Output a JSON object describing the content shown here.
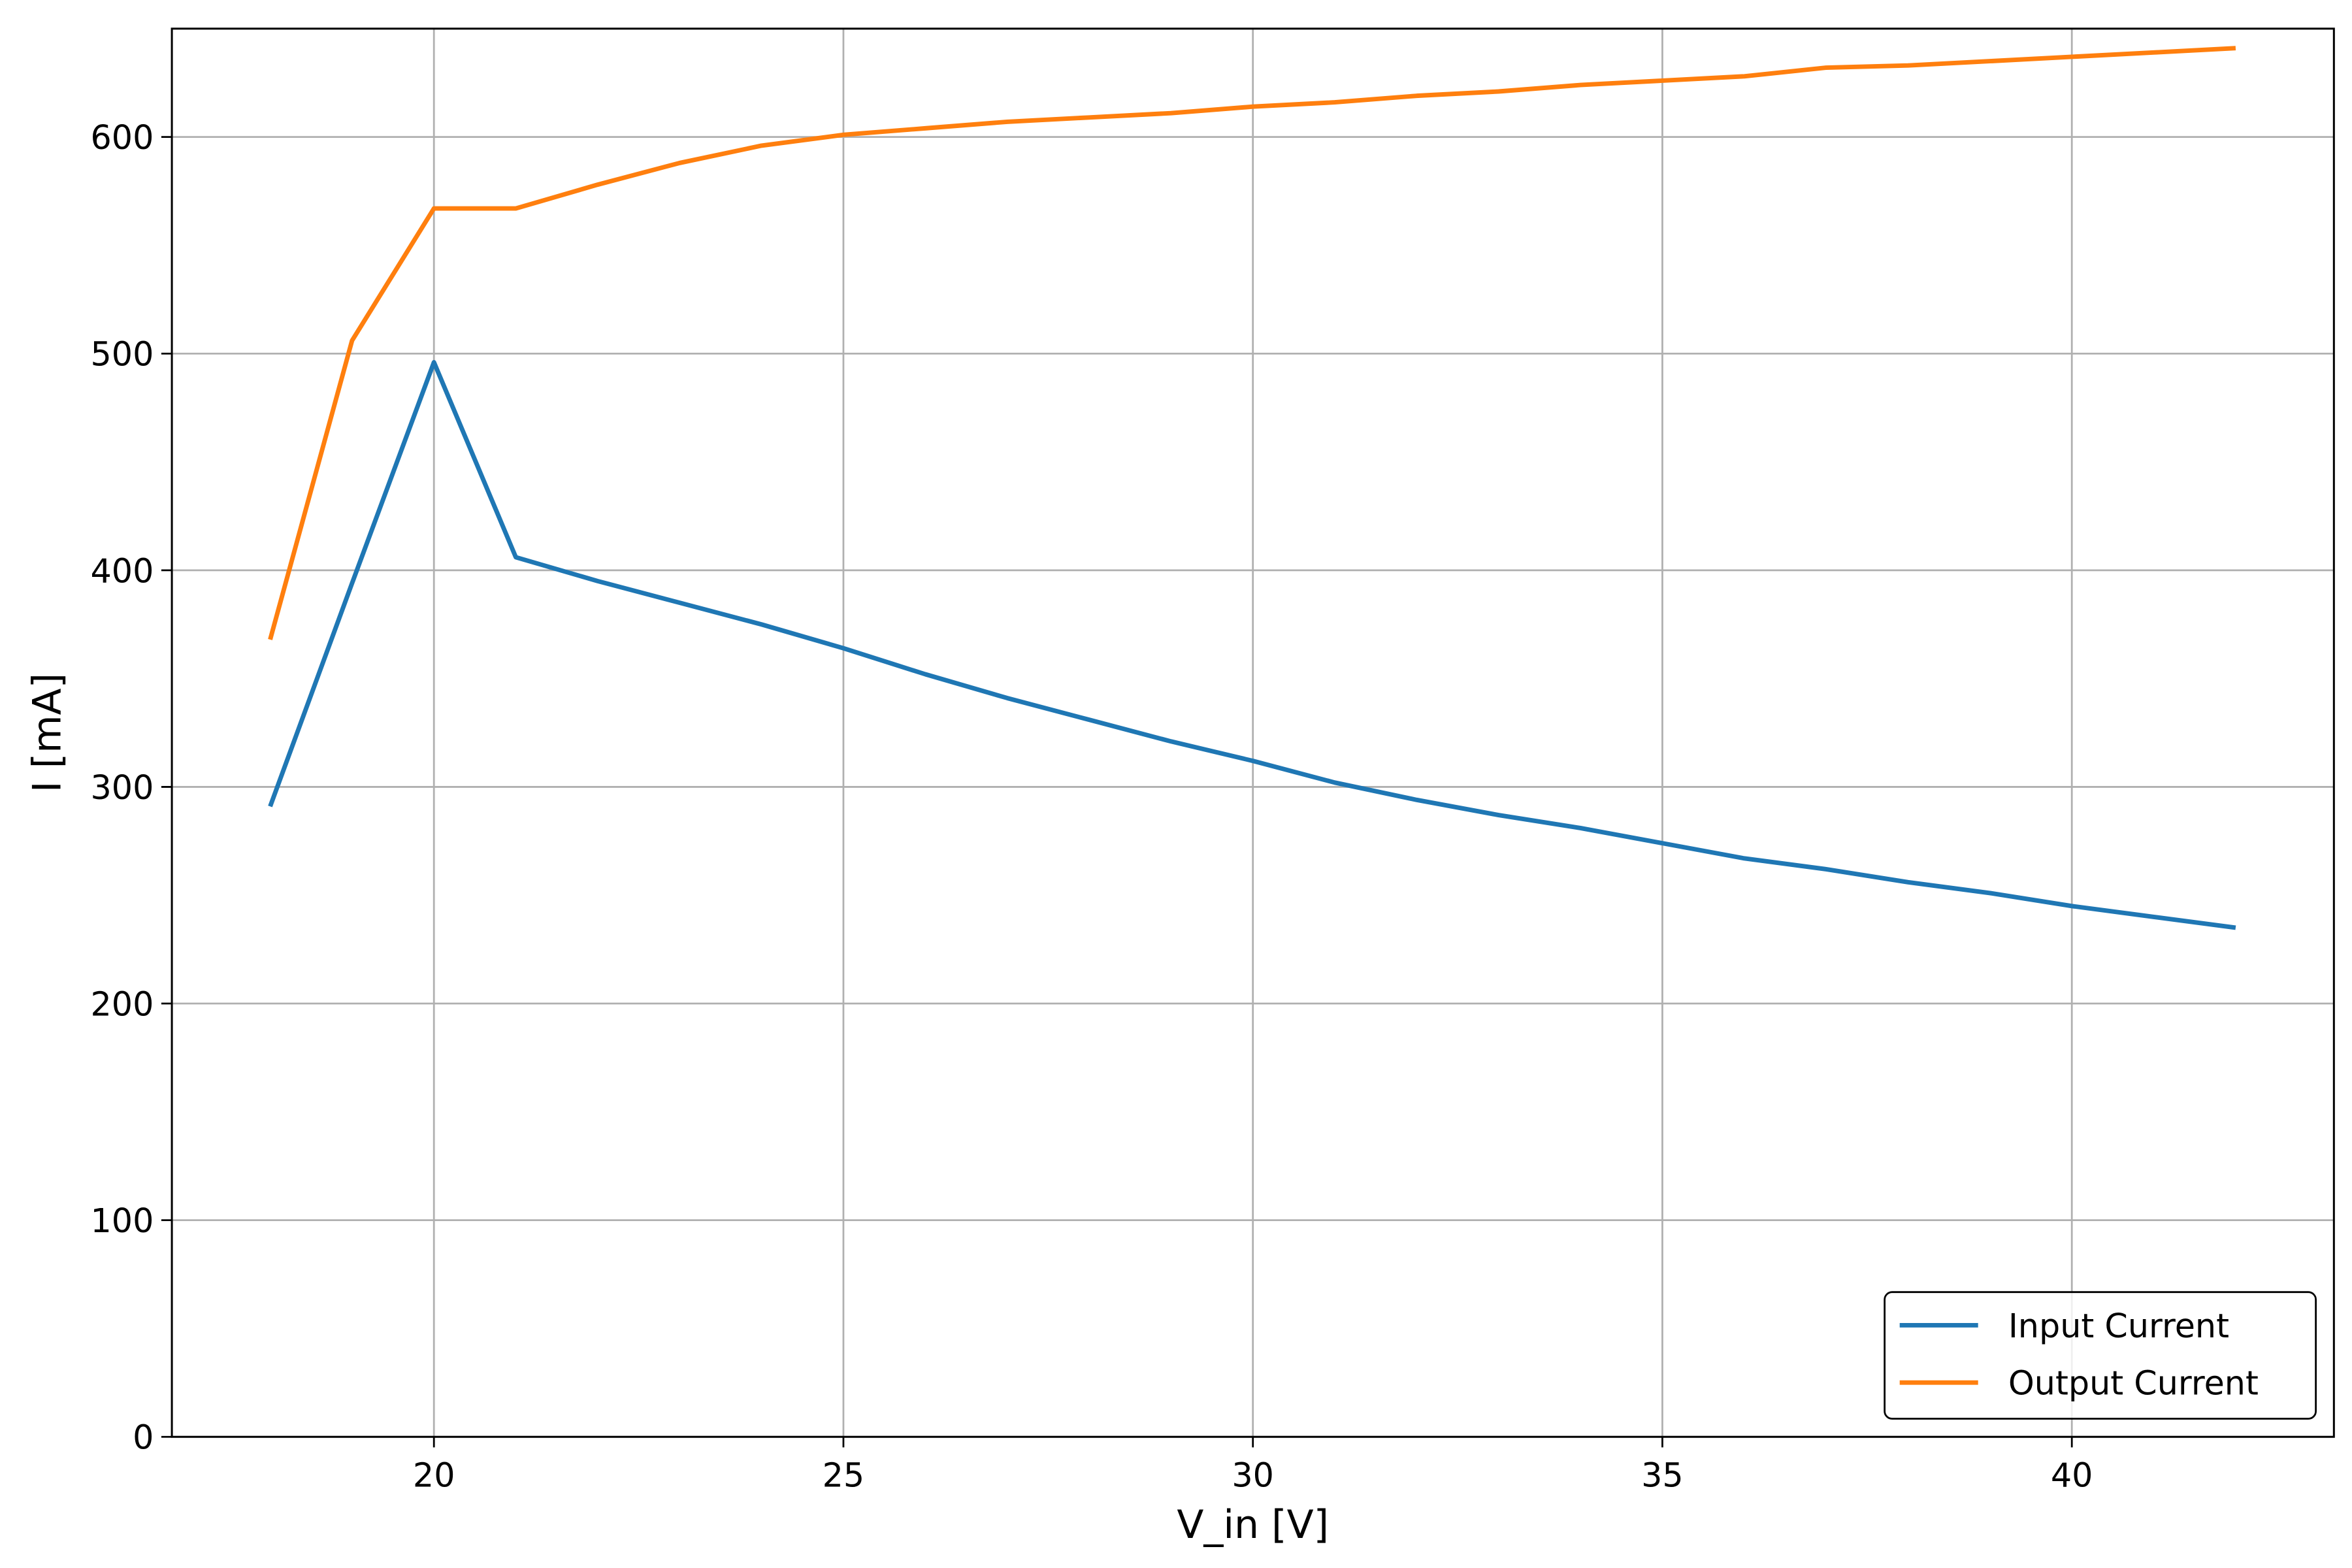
{
  "chart_data": {
    "type": "line",
    "x_label": "V_in [V]",
    "y_label": "I [mA]",
    "x": [
      18,
      19,
      20,
      21,
      22,
      23,
      24,
      25,
      26,
      27,
      28,
      29,
      30,
      31,
      32,
      33,
      34,
      35,
      36,
      37,
      38,
      39,
      40,
      41,
      42
    ],
    "series": [
      {
        "name": "Input Current",
        "color": "#1f77b4",
        "values": [
          291,
          394,
          496,
          406,
          395,
          385,
          375,
          364,
          352,
          341,
          331,
          321,
          312,
          302,
          294,
          287,
          281,
          274,
          267,
          262,
          256,
          251,
          245,
          240,
          235
        ]
      },
      {
        "name": "Output Current",
        "color": "#ff7f0e",
        "values": [
          368,
          506,
          567,
          567,
          578,
          588,
          596,
          601,
          604,
          607,
          609,
          611,
          614,
          616,
          619,
          621,
          624,
          626,
          628,
          632,
          633,
          635,
          637,
          639,
          641
        ]
      }
    ],
    "xlim": [
      16.8,
      43.2
    ],
    "xticks": [
      20,
      25,
      30,
      35,
      40
    ],
    "ylim": [
      0,
      650
    ],
    "yticks": [
      0,
      100,
      200,
      300,
      400,
      500,
      600
    ],
    "grid": true,
    "legend": "lower right"
  }
}
